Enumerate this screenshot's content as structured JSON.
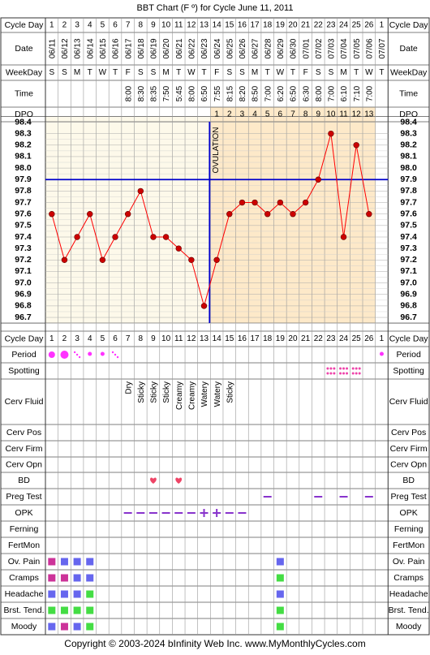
{
  "title": "BBT Chart (F º) for Cycle June 11, 2011",
  "copyright": "Copyright © 2003-2024 bInfinity Web Inc.     www.MyMonthlyCycles.com",
  "ovulation_label": "OVULATION",
  "row_labels": {
    "cycle_day": "Cycle Day",
    "date": "Date",
    "weekday": "WeekDay",
    "time": "Time",
    "dpo": "DPO",
    "period": "Period",
    "spotting": "Spotting",
    "cerv_fluid": "Cerv Fluid",
    "cerv_pos": "Cerv Pos",
    "cerv_firm": "Cerv Firm",
    "cerv_opn": "Cerv Opn",
    "bd": "BD",
    "preg_test": "Preg Test",
    "opk": "OPK",
    "ferning": "Ferning",
    "fertmon": "FertMon",
    "ov_pain": "Ov. Pain",
    "cramps": "Cramps",
    "headache": "Headache",
    "brst_tend": "Brst. Tend.",
    "moody": "Moody"
  },
  "columns": {
    "cycle_day": [
      "1",
      "2",
      "3",
      "4",
      "5",
      "6",
      "7",
      "8",
      "9",
      "10",
      "11",
      "12",
      "13",
      "14",
      "15",
      "16",
      "17",
      "18",
      "19",
      "20",
      "21",
      "22",
      "23",
      "24",
      "25",
      "26",
      "1"
    ],
    "date": [
      "06/11",
      "06/12",
      "06/13",
      "06/14",
      "06/15",
      "06/16",
      "06/17",
      "06/18",
      "06/19",
      "06/20",
      "06/21",
      "06/22",
      "06/23",
      "06/24",
      "06/25",
      "06/26",
      "06/27",
      "06/28",
      "06/29",
      "06/30",
      "07/01",
      "07/02",
      "07/03",
      "07/04",
      "07/05",
      "07/06",
      "07/07"
    ],
    "weekday": [
      "S",
      "S",
      "M",
      "T",
      "W",
      "T",
      "F",
      "S",
      "S",
      "M",
      "T",
      "W",
      "T",
      "F",
      "S",
      "S",
      "M",
      "T",
      "W",
      "T",
      "F",
      "S",
      "S",
      "M",
      "T",
      "W",
      "T"
    ],
    "time": [
      "",
      "",
      "",
      "",
      "",
      "",
      "8:00",
      "8:30",
      "8:35",
      "7:50",
      "5:45",
      "8:00",
      "6:50",
      "7:55",
      "8:15",
      "8:20",
      "8:50",
      "7:00",
      "6:20",
      "6:50",
      "6:30",
      "8:00",
      "7:00",
      "6:10",
      "7:10",
      "7:00",
      ""
    ],
    "dpo": [
      "",
      "",
      "",
      "",
      "",
      "",
      "",
      "",
      "",
      "",
      "",
      "",
      "",
      "1",
      "2",
      "3",
      "4",
      "5",
      "6",
      "7",
      "8",
      "9",
      "10",
      "11",
      "12",
      "13",
      ""
    ],
    "cerv_fluid": [
      "",
      "",
      "",
      "",
      "",
      "",
      "Dry",
      "Sticky",
      "Sticky",
      "Sticky",
      "Creamy",
      "Creamy",
      "Watery",
      "Watery",
      "Sticky",
      "",
      "",
      "",
      "",
      "",
      "",
      "",
      "",
      "",
      "",
      "",
      ""
    ]
  },
  "chart_data": {
    "type": "line",
    "title": "BBT Chart (F º) for Cycle June 11, 2011",
    "x": [
      1,
      2,
      3,
      4,
      5,
      6,
      7,
      8,
      9,
      10,
      11,
      12,
      13,
      14,
      15,
      16,
      17,
      18,
      19,
      20,
      21,
      22,
      23,
      24,
      25,
      26
    ],
    "y": [
      97.6,
      97.2,
      97.4,
      97.6,
      97.2,
      97.4,
      97.6,
      97.8,
      97.4,
      97.4,
      97.3,
      97.2,
      96.8,
      97.2,
      97.6,
      97.7,
      97.7,
      97.6,
      97.7,
      97.6,
      97.7,
      97.9,
      98.3,
      97.4,
      98.2,
      97.6
    ],
    "ylim": [
      96.7,
      98.4
    ],
    "ytick_labels": [
      "98.4",
      "98.3",
      "98.2",
      "98.1",
      "98.0",
      "97.9",
      "97.8",
      "97.7",
      "97.6",
      "97.5",
      "97.4",
      "97.3",
      "97.2",
      "97.1",
      "97.0",
      "96.9",
      "96.8",
      "96.7"
    ],
    "coverline": 97.9,
    "ovulation_day": 13,
    "line_color": "#ff0000",
    "point_color": "#cc0000",
    "coverline_color": "#0000cc",
    "postovulation_color": "#fde9c9",
    "preovulation_color": "#fdf9ea",
    "grid": true
  },
  "markers": {
    "period": [
      {
        "col": 0,
        "kind": "large"
      },
      {
        "col": 1,
        "kind": "xlarge"
      },
      {
        "col": 2,
        "kind": "dots"
      },
      {
        "col": 3,
        "kind": "small"
      },
      {
        "col": 4,
        "kind": "small"
      },
      {
        "col": 5,
        "kind": "dots"
      },
      {
        "col": 26,
        "kind": "small"
      }
    ],
    "spotting": [
      22,
      23,
      24
    ],
    "bd": [
      8,
      10
    ],
    "preg_test": [
      17,
      21,
      23,
      25
    ],
    "opk": [
      {
        "col": 6,
        "v": "-"
      },
      {
        "col": 7,
        "v": "-"
      },
      {
        "col": 8,
        "v": "-"
      },
      {
        "col": 9,
        "v": "-"
      },
      {
        "col": 10,
        "v": "-"
      },
      {
        "col": 11,
        "v": "-"
      },
      {
        "col": 12,
        "v": "+"
      },
      {
        "col": 13,
        "v": "+"
      },
      {
        "col": 14,
        "v": "-"
      },
      {
        "col": 15,
        "v": "-"
      }
    ],
    "symptoms": {
      "ov_pain": [
        {
          "col": 0,
          "c": "#cc3399"
        },
        {
          "col": 1,
          "c": "#6666ee"
        },
        {
          "col": 2,
          "c": "#6666ee"
        },
        {
          "col": 3,
          "c": "#6666ee"
        },
        {
          "col": 18,
          "c": "#6666ee"
        }
      ],
      "cramps": [
        {
          "col": 0,
          "c": "#cc3399"
        },
        {
          "col": 1,
          "c": "#cc3399"
        },
        {
          "col": 2,
          "c": "#6666ee"
        },
        {
          "col": 3,
          "c": "#6666ee"
        },
        {
          "col": 18,
          "c": "#44dd44"
        }
      ],
      "headache": [
        {
          "col": 0,
          "c": "#6666ee"
        },
        {
          "col": 1,
          "c": "#6666ee"
        },
        {
          "col": 2,
          "c": "#6666ee"
        },
        {
          "col": 3,
          "c": "#44dd44"
        },
        {
          "col": 18,
          "c": "#6666ee"
        }
      ],
      "brst_tend": [
        {
          "col": 0,
          "c": "#44dd44"
        },
        {
          "col": 1,
          "c": "#44dd44"
        },
        {
          "col": 2,
          "c": "#44dd44"
        },
        {
          "col": 3,
          "c": "#44dd44"
        },
        {
          "col": 18,
          "c": "#44dd44"
        }
      ],
      "moody": [
        {
          "col": 0,
          "c": "#6666ee"
        },
        {
          "col": 1,
          "c": "#cc3399"
        },
        {
          "col": 2,
          "c": "#6666ee"
        },
        {
          "col": 3,
          "c": "#44dd44"
        },
        {
          "col": 18,
          "c": "#44dd44"
        }
      ]
    },
    "colors": {
      "period": "#ff33ff",
      "spotting": "#ee44aa",
      "bd": "#ee4466",
      "opk": "#8833cc",
      "preg_test": "#8833cc"
    }
  }
}
